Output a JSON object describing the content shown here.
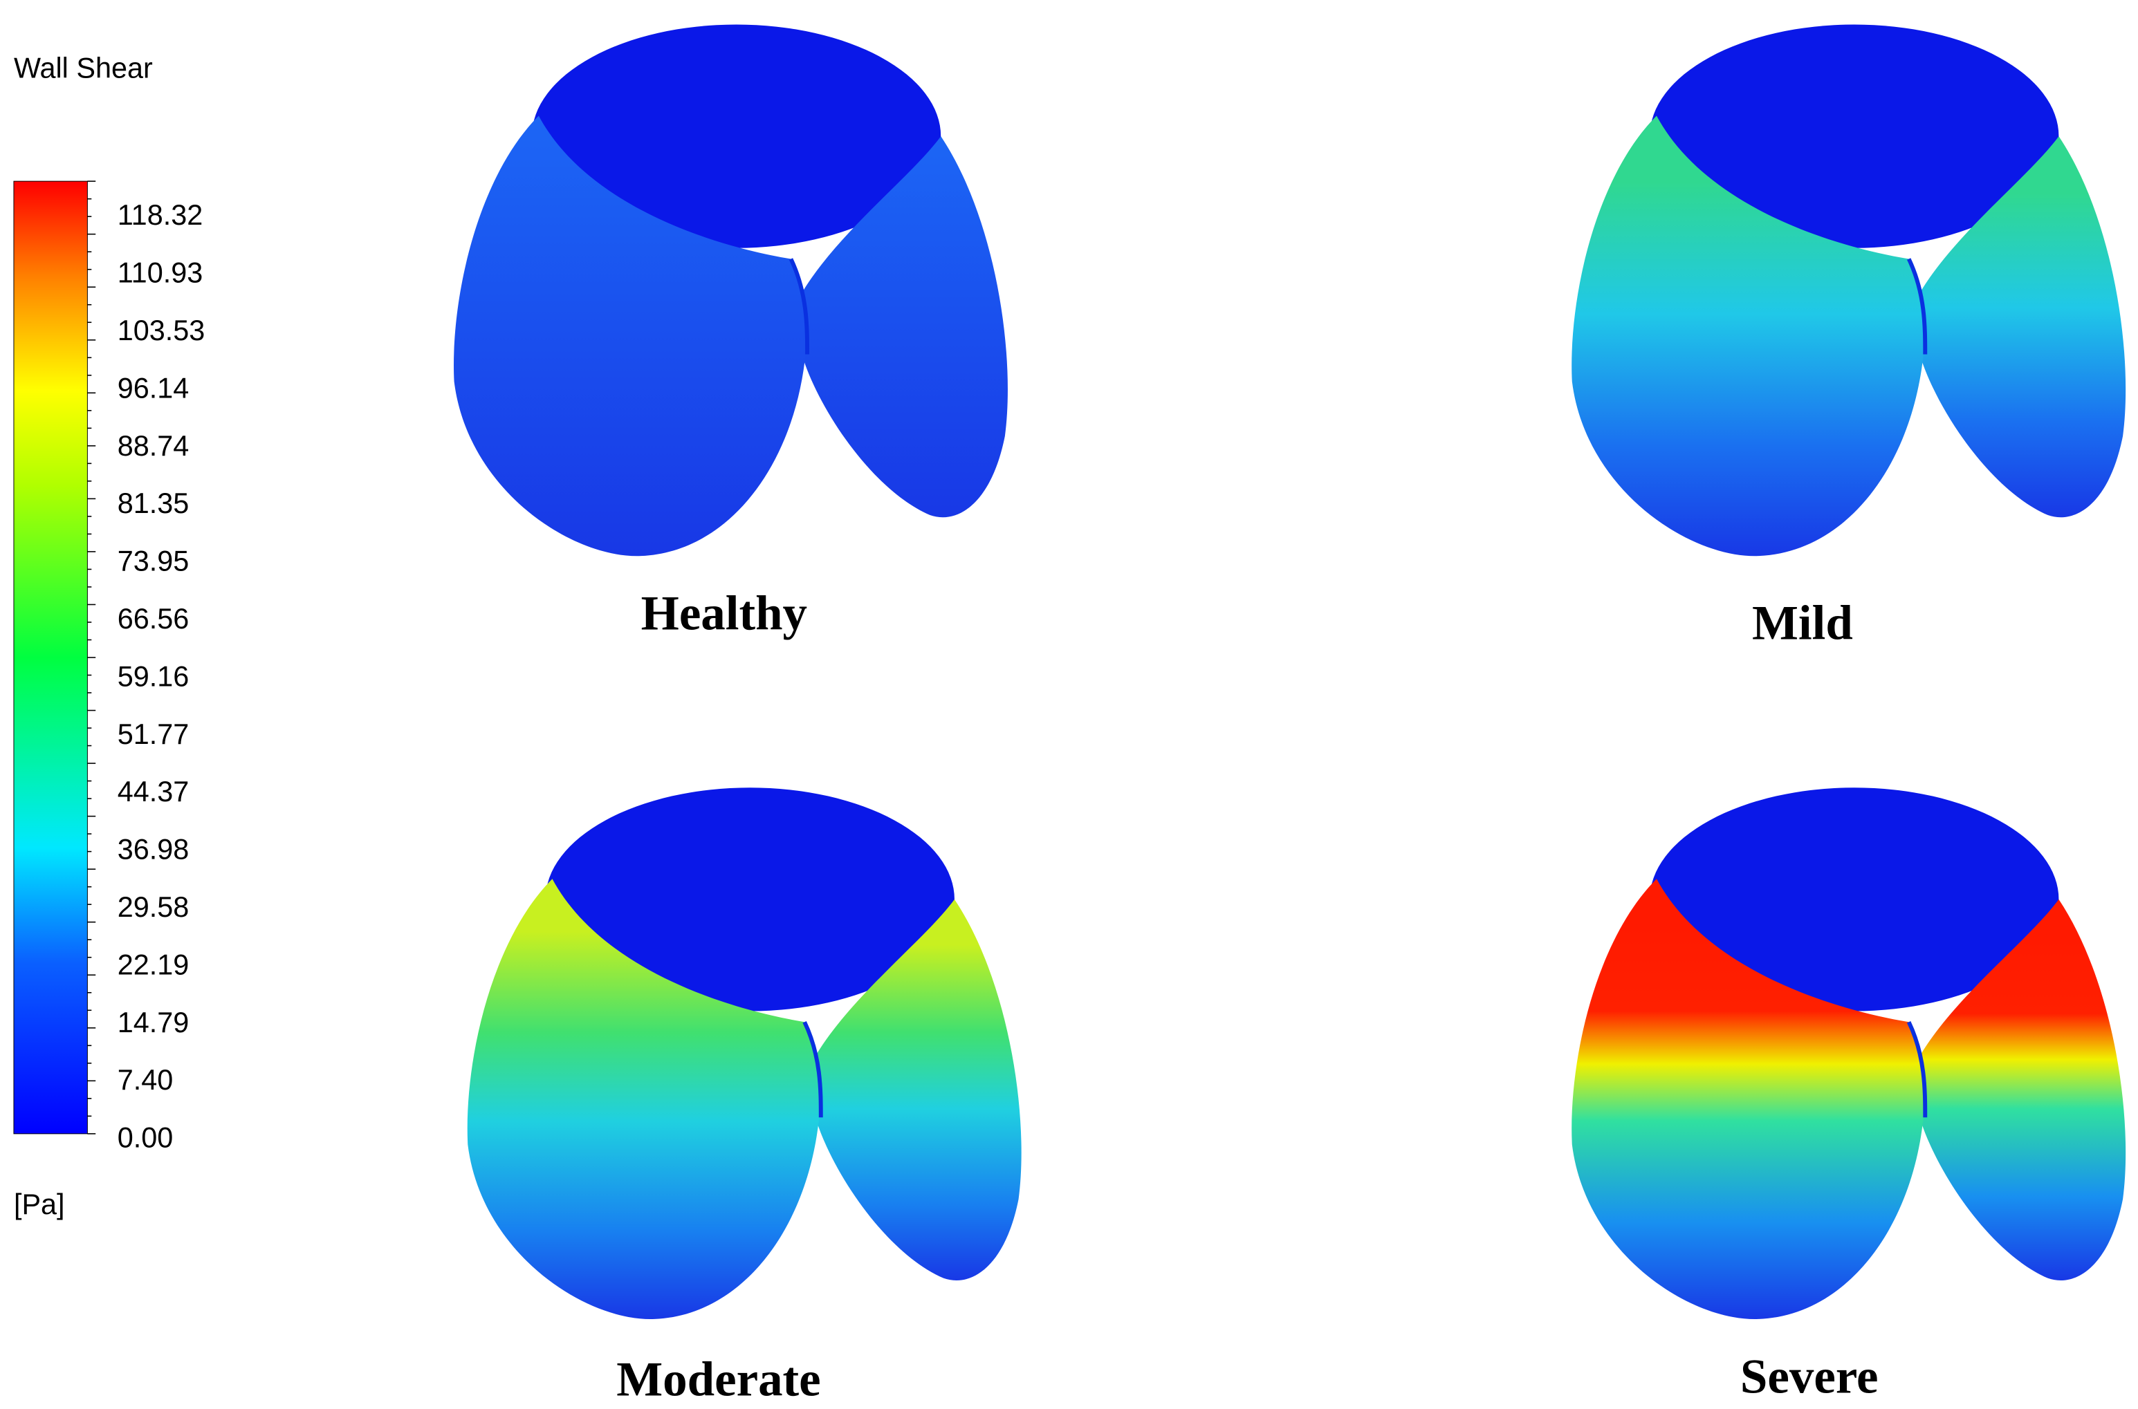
{
  "legend": {
    "title": "Wall Shear",
    "ticks": [
      "0.00",
      "7.40",
      "14.79",
      "22.19",
      "29.58",
      "36.98",
      "44.37",
      "51.77",
      "59.16",
      "66.56",
      "73.95",
      "81.35",
      "88.74",
      "96.14",
      "103.53",
      "110.93",
      "118.32"
    ],
    "unit": "[Pa]"
  },
  "panels": [
    {
      "label": "Healthy"
    },
    {
      "label": "Mild"
    },
    {
      "label": "Moderate"
    },
    {
      "label": "Severe"
    }
  ]
}
